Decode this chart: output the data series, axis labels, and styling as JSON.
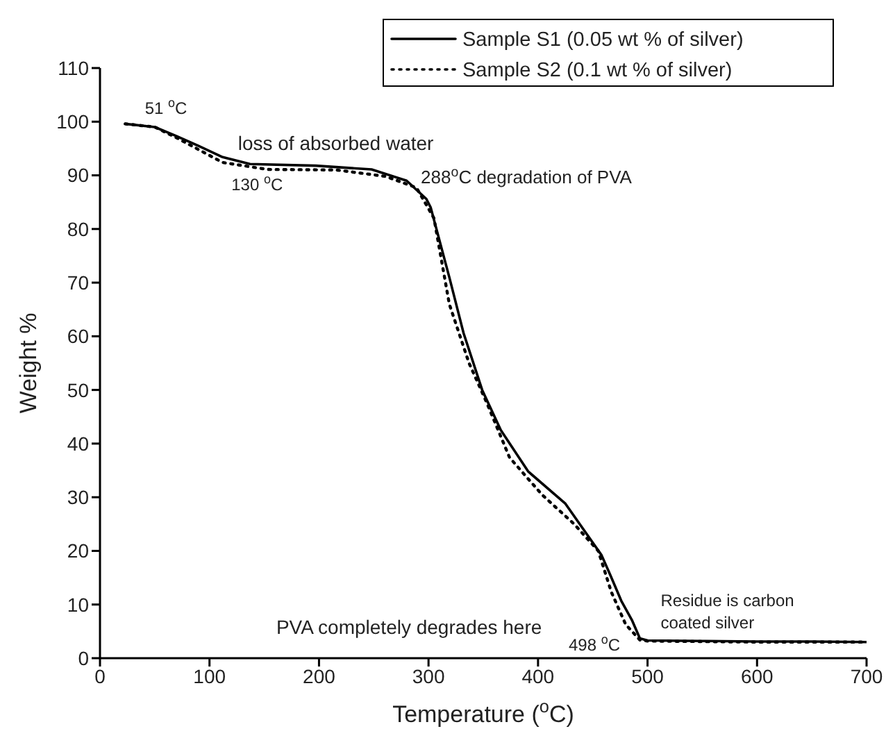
{
  "chart_data": {
    "type": "line",
    "xlabel": "Temperature ($^{o}$C)",
    "ylabel": "Weight %",
    "xlim": [
      0,
      700
    ],
    "xticks": [
      0,
      100,
      200,
      300,
      400,
      500,
      600,
      700
    ],
    "ylim": [
      0,
      110
    ],
    "yticks": [
      0,
      10,
      20,
      30,
      40,
      50,
      60,
      70,
      80,
      90,
      100,
      110
    ],
    "grid": false,
    "legend": "top right",
    "marker": "none",
    "series": [
      {
        "name": "Sample S1 (0.05 wt % of silver)",
        "color": "#000000",
        "line_style": "solid",
        "x": [
          23,
          50,
          70,
          90,
          112,
          137,
          197,
          248,
          280,
          298,
          302,
          319,
          332,
          349,
          366,
          391,
          425,
          458,
          466,
          476,
          486,
          493,
          500,
          550,
          600,
          650,
          700
        ],
        "values": [
          99.6,
          99.0,
          97.3,
          95.5,
          93.4,
          92.1,
          91.8,
          91.1,
          89,
          85.6,
          84,
          71,
          60.6,
          50,
          42.5,
          34.8,
          28.8,
          19.2,
          15.5,
          10.7,
          7,
          3.7,
          3.3,
          3.2,
          3.1,
          3.1,
          3.0
        ]
      },
      {
        "name": "Sample S2 (0.1 wt % of silver)",
        "color": "#000000",
        "line_style": "dotted",
        "x": [
          23,
          50,
          70,
          90,
          112,
          153,
          216,
          261,
          289,
          305,
          319,
          337,
          353,
          374,
          404,
          433,
          455,
          467,
          480,
          493,
          500,
          550,
          600,
          650,
          700
        ],
        "values": [
          99.6,
          99.0,
          97.0,
          94.8,
          92.4,
          91.1,
          91.0,
          89.8,
          87.7,
          82,
          66,
          55,
          47.7,
          37.4,
          30.4,
          25,
          20,
          12.3,
          6.3,
          3.4,
          3.2,
          3.1,
          3.0,
          3.0,
          3.0
        ]
      }
    ],
    "annotations": [
      "51 $^{o}$C",
      "loss of absorbed water",
      "130 $^{o}$C",
      "288$^{o}$C degradation of PVA",
      "PVA completely degrades here",
      "498 $^{o}$C",
      "Residue is carbon coated silver"
    ]
  }
}
